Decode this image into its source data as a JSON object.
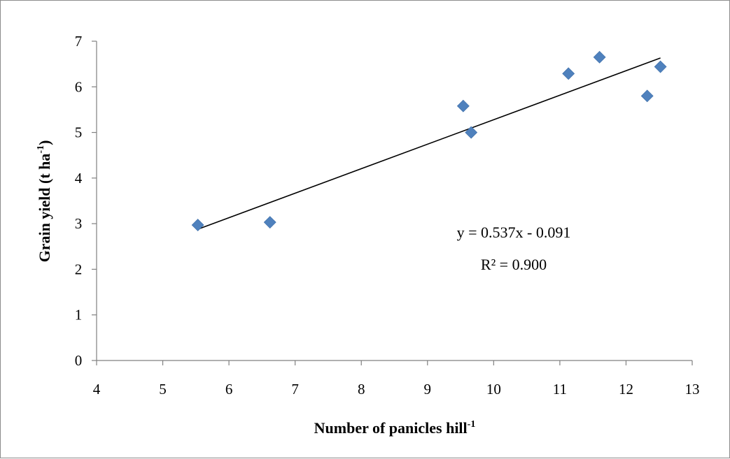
{
  "chart_data": {
    "type": "scatter",
    "title": "",
    "xlabel": {
      "text": "Number of panicles hill",
      "sup": "-1"
    },
    "ylabel": {
      "text": "Grain yield (t ha",
      "sup": "-1",
      "suffix": ")"
    },
    "xlim": [
      4,
      13
    ],
    "ylim": [
      0,
      7
    ],
    "xticks": [
      4,
      5,
      6,
      7,
      8,
      9,
      10,
      11,
      12,
      13
    ],
    "yticks": [
      0,
      1,
      2,
      3,
      4,
      5,
      6,
      7
    ],
    "grid": false,
    "legend": "none",
    "series": [
      {
        "marker": "diamond",
        "color": "#4f81bd",
        "points": [
          {
            "x": 5.53,
            "y": 2.97
          },
          {
            "x": 6.62,
            "y": 3.03
          },
          {
            "x": 9.54,
            "y": 5.58
          },
          {
            "x": 9.66,
            "y": 5.0
          },
          {
            "x": 11.13,
            "y": 6.29
          },
          {
            "x": 11.6,
            "y": 6.65
          },
          {
            "x": 12.32,
            "y": 5.8
          },
          {
            "x": 12.52,
            "y": 6.44
          }
        ]
      }
    ],
    "trendline": {
      "type": "linear",
      "slope": 0.537,
      "intercept": -0.091,
      "x_range": [
        5.53,
        12.52
      ],
      "color": "#000000",
      "equation": "y = 0.537x - 0.091",
      "r_squared": "R² = 0.900"
    }
  }
}
